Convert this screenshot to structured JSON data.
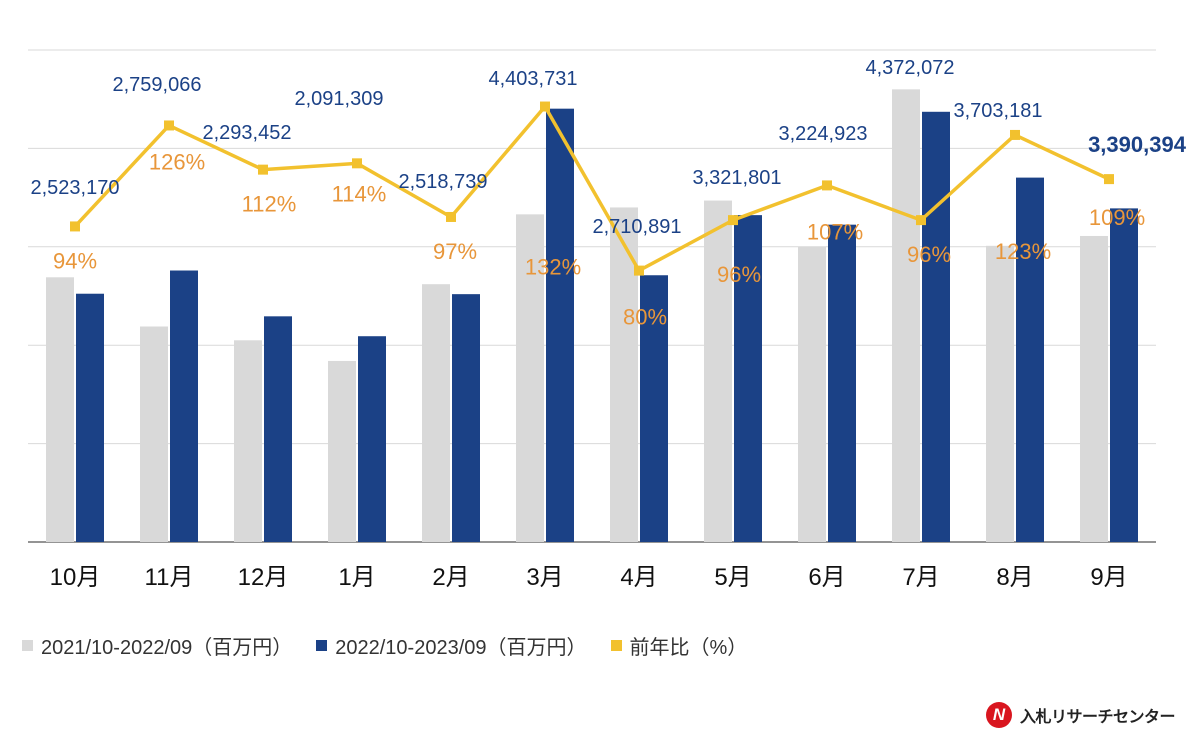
{
  "chart_data": {
    "type": "bar",
    "categories": [
      "10月",
      "11月",
      "12月",
      "1月",
      "2月",
      "3月",
      "4月",
      "5月",
      "6月",
      "7月",
      "8月",
      "9月"
    ],
    "ylim": [
      0,
      5000000
    ],
    "grid": true,
    "legend_position": "bottom-left",
    "series": [
      {
        "name": "2021/10-2022/09（百万円）",
        "kind": "bar",
        "color": "#d9d9d9",
        "values": [
          2690000,
          2190000,
          2050000,
          1840000,
          2620000,
          3330000,
          3400000,
          3470000,
          3000000,
          4600000,
          3010000,
          3110000
        ]
      },
      {
        "name": "2022/10-2023/09（百万円）",
        "kind": "bar",
        "color": "#1b4186",
        "values": [
          2523170,
          2759066,
          2293452,
          2091309,
          2518739,
          4403731,
          2710891,
          3321801,
          3224923,
          4372072,
          3703181,
          3390394
        ],
        "labels": [
          "2,523,170",
          "2,759,066",
          "2,293,452",
          "2,091,309",
          "2,518,739",
          "4,403,731",
          "2,710,891",
          "3,321,801",
          "3,224,923",
          "4,372,072",
          "3,703,181",
          "3,390,394"
        ]
      },
      {
        "name": "前年比（%）",
        "kind": "line",
        "color": "#f2c12e",
        "label_color": "#e8963a",
        "values": [
          94,
          126,
          112,
          114,
          97,
          132,
          80,
          96,
          107,
          96,
          123,
          109
        ],
        "labels": [
          "94%",
          "126%",
          "112%",
          "114%",
          "97%",
          "132%",
          "80%",
          "96%",
          "107%",
          "96%",
          "123%",
          "109%"
        ]
      }
    ]
  },
  "logo": {
    "mark": "N",
    "text": "入札リサーチセンター"
  }
}
